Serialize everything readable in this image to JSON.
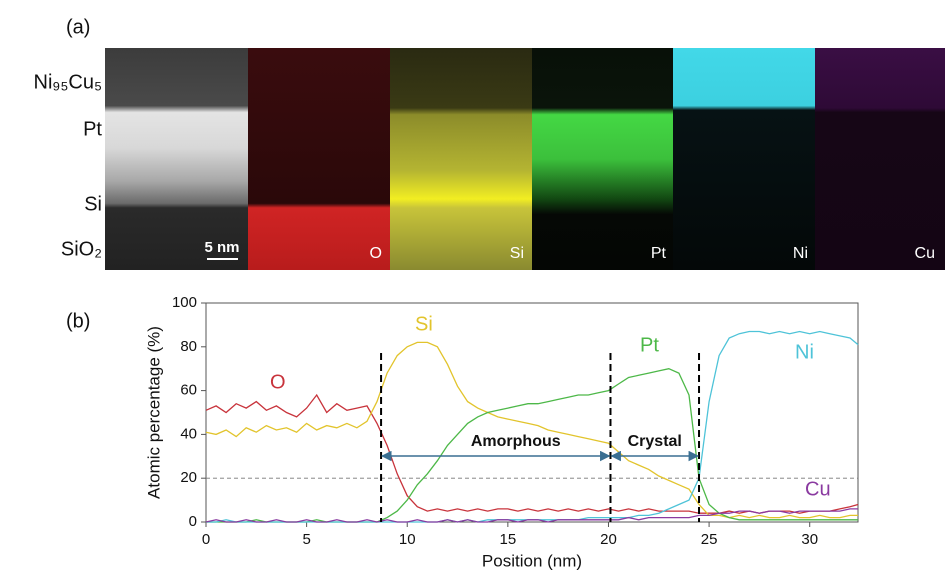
{
  "panel_a": {
    "label": "(a)",
    "layers": [
      "Ni₉₅Cu₅",
      "Pt",
      "Si",
      "SiO₂"
    ],
    "scale_bar": "5 nm",
    "maps": [
      "O",
      "Si",
      "Pt",
      "Ni",
      "Cu"
    ]
  },
  "chart_data": {
    "type": "line",
    "panel_label": "(b)",
    "xlabel": "Position (nm)",
    "ylabel": "Atomic percentage (%)",
    "xlim": [
      0,
      32.4
    ],
    "ylim": [
      0,
      100
    ],
    "xticks": [
      0,
      5,
      10,
      15,
      20,
      25,
      30
    ],
    "yticks": [
      0,
      20,
      40,
      60,
      80,
      100
    ],
    "hline": 20,
    "vlines": [
      8.7,
      20.1,
      24.5
    ],
    "regions": [
      {
        "label": "Amorphous"
      },
      {
        "label": "Crystal"
      }
    ],
    "x": [
      0,
      0.5,
      1,
      1.5,
      2,
      2.5,
      3,
      3.5,
      4,
      4.5,
      5,
      5.5,
      6,
      6.5,
      7,
      7.5,
      8,
      8.5,
      9,
      9.5,
      10,
      10.5,
      11,
      11.5,
      12,
      12.5,
      13,
      13.5,
      14,
      14.5,
      15,
      15.5,
      16,
      16.5,
      17,
      17.5,
      18,
      18.5,
      19,
      19.5,
      20,
      20.5,
      21,
      21.5,
      22,
      22.5,
      23,
      23.5,
      24,
      24.5,
      25,
      25.5,
      26,
      26.5,
      27,
      27.5,
      28,
      28.5,
      29,
      29.5,
      30,
      30.5,
      31,
      31.5,
      32,
      32.4
    ],
    "series": [
      {
        "name": "O",
        "color": "#c8333b",
        "values": [
          51,
          53,
          50,
          54,
          52,
          55,
          51,
          53,
          50,
          48,
          52,
          58,
          50,
          54,
          51,
          52,
          53,
          45,
          35,
          22,
          12,
          7,
          5,
          6,
          5,
          6,
          5,
          6,
          5,
          6,
          6,
          5,
          6,
          5,
          6,
          5,
          6,
          5,
          6,
          5,
          6,
          5,
          6,
          5,
          6,
          5,
          5,
          5,
          5,
          4,
          4,
          4,
          5,
          4,
          5,
          4,
          5,
          5,
          5,
          4,
          5,
          5,
          5,
          6,
          7,
          8
        ]
      },
      {
        "name": "Si",
        "color": "#e2c42c",
        "values": [
          41,
          40,
          42,
          39,
          43,
          41,
          44,
          42,
          43,
          41,
          45,
          42,
          44,
          43,
          45,
          43,
          46,
          55,
          68,
          76,
          80,
          82,
          82,
          80,
          72,
          62,
          55,
          52,
          50,
          48,
          47,
          46,
          45,
          44,
          42,
          41,
          40,
          39,
          38,
          37,
          36,
          32,
          28,
          26,
          24,
          21,
          19,
          17,
          15,
          8,
          3,
          3,
          2,
          3,
          2,
          3,
          2,
          2,
          3,
          2,
          2,
          3,
          2,
          2,
          3,
          3
        ]
      },
      {
        "name": "Pt",
        "color": "#4db848",
        "values": [
          0,
          0,
          0,
          0,
          0,
          1,
          0,
          0,
          0,
          0,
          0,
          1,
          0,
          0,
          0,
          0,
          0,
          0,
          2,
          5,
          10,
          17,
          22,
          28,
          35,
          40,
          45,
          48,
          50,
          51,
          52,
          53,
          54,
          54,
          55,
          56,
          57,
          58,
          58,
          59,
          60,
          63,
          66,
          67,
          68,
          69,
          70,
          68,
          58,
          20,
          8,
          4,
          2,
          1,
          1,
          1,
          1,
          1,
          1,
          1,
          1,
          1,
          1,
          1,
          1,
          1
        ]
      },
      {
        "name": "Ni",
        "color": "#4ec3d8",
        "values": [
          0,
          0,
          1,
          0,
          0,
          0,
          0,
          0,
          0,
          0,
          0,
          0,
          0,
          0,
          0,
          0,
          0,
          0,
          0,
          0,
          0,
          0,
          0,
          0,
          1,
          0,
          1,
          0,
          1,
          1,
          1,
          1,
          1,
          1,
          1,
          1,
          1,
          1,
          2,
          2,
          2,
          2,
          2,
          3,
          3,
          4,
          6,
          8,
          10,
          20,
          55,
          76,
          84,
          86,
          87,
          87,
          86,
          87,
          86,
          87,
          86,
          87,
          86,
          85,
          84,
          81
        ]
      },
      {
        "name": "Cu",
        "color": "#8a3aa0",
        "values": [
          0,
          1,
          0,
          0,
          1,
          0,
          0,
          1,
          0,
          0,
          1,
          0,
          0,
          1,
          0,
          0,
          1,
          0,
          1,
          0,
          0,
          1,
          0,
          0,
          1,
          0,
          1,
          0,
          0,
          1,
          1,
          0,
          1,
          1,
          0,
          1,
          1,
          1,
          1,
          1,
          1,
          1,
          2,
          1,
          2,
          2,
          2,
          2,
          2,
          3,
          3,
          4,
          4,
          5,
          5,
          4,
          5,
          5,
          4,
          5,
          5,
          5,
          5,
          5,
          6,
          6
        ]
      }
    ]
  }
}
